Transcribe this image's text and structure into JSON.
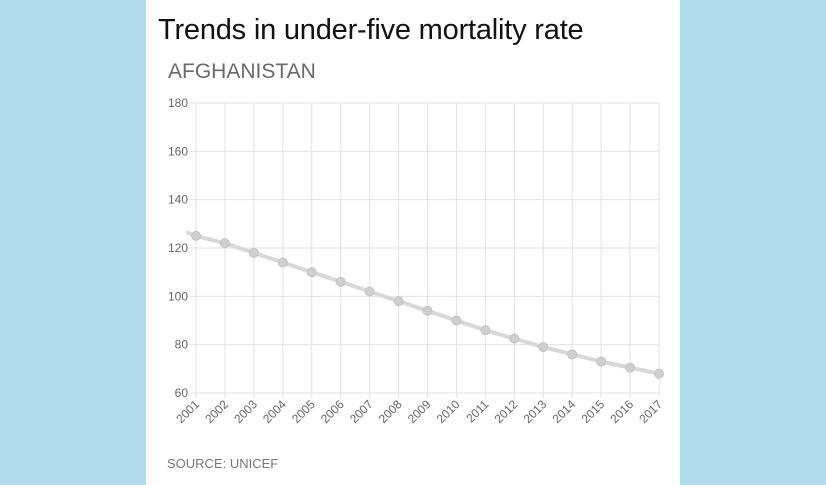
{
  "colors": {
    "background": "#b1dcec",
    "card": "#ffffff",
    "line": "#d8d8d8",
    "marker": "#cfcfcf",
    "grid": "#e2e2e2"
  },
  "chart_data": {
    "type": "line",
    "title": "Trends in under-five mortality rate",
    "subtitle": "AFGHANISTAN",
    "source": "SOURCE: UNICEF",
    "xlabel": "",
    "ylabel": "",
    "x": [
      "2001",
      "2002",
      "2003",
      "2004",
      "2005",
      "2006",
      "2007",
      "2008",
      "2009",
      "2010",
      "2011",
      "2012",
      "2013",
      "2014",
      "2015",
      "2016",
      "2017"
    ],
    "series": [
      {
        "name": "Under-five mortality rate",
        "values": [
          125,
          122,
          118,
          114,
          110,
          106,
          102,
          98,
          94,
          90,
          86,
          82.5,
          79,
          76,
          73,
          70.5,
          68
        ]
      }
    ],
    "ylim": [
      60,
      180
    ],
    "yticks": [
      60,
      80,
      100,
      120,
      140,
      160,
      180
    ],
    "grid": true,
    "legend": "none"
  }
}
